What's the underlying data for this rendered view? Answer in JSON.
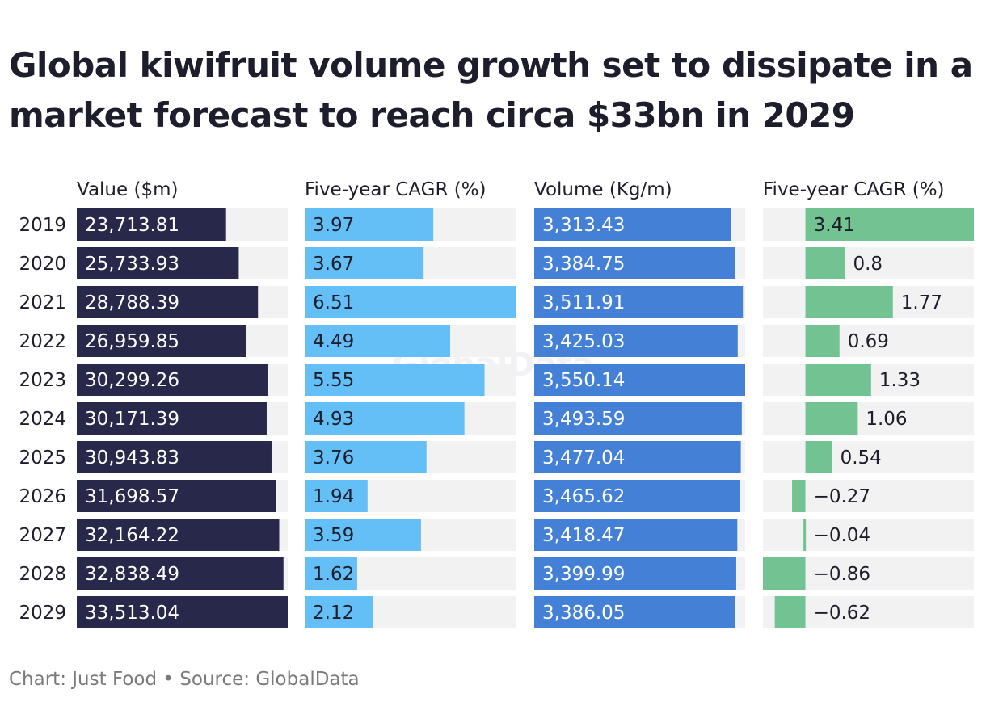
{
  "title": "Global kiwifruit volume growth set to dissipate in a market forecast to reach circa $33bn in 2029",
  "footer": "Chart: Just Food • Source: GlobalData",
  "watermark": "GlobalData",
  "colors": {
    "value": "#28284a",
    "value_cagr": "#64bff7",
    "volume": "#4480d6",
    "volume_cagr": "#72c391",
    "track": "#f2f2f2",
    "label_on_dark": "#ffffff",
    "label_on_light": "#1d1d2b"
  },
  "chart_data": {
    "type": "table",
    "categories": [
      "2019",
      "2020",
      "2021",
      "2022",
      "2023",
      "2024",
      "2025",
      "2026",
      "2027",
      "2028",
      "2029"
    ],
    "series": [
      {
        "name": "Value ($m)",
        "values": [
          23713.81,
          25733.93,
          28788.39,
          26959.85,
          30299.26,
          30171.39,
          30943.83,
          31698.57,
          32164.22,
          32838.49,
          33513.04
        ],
        "labels": [
          "23,713.81",
          "25,733.93",
          "28,788.39",
          "26,959.85",
          "30,299.26",
          "30,171.39",
          "30,943.83",
          "31,698.57",
          "32,164.22",
          "32,838.49",
          "33,513.04"
        ],
        "range": [
          0,
          33513.04
        ]
      },
      {
        "name": "Five-year CAGR (%)",
        "values": [
          3.97,
          3.67,
          6.51,
          4.49,
          5.55,
          4.93,
          3.76,
          1.94,
          3.59,
          1.62,
          2.12
        ],
        "labels": [
          "3.97",
          "3.67",
          "6.51",
          "4.49",
          "5.55",
          "4.93",
          "3.76",
          "1.94",
          "3.59",
          "1.62",
          "2.12"
        ],
        "range": [
          0,
          6.51
        ]
      },
      {
        "name": "Volume (Kg/m)",
        "values": [
          3313.43,
          3384.75,
          3511.91,
          3425.03,
          3550.14,
          3493.59,
          3477.04,
          3465.62,
          3418.47,
          3399.99,
          3386.05
        ],
        "labels": [
          "3,313.43",
          "3,384.75",
          "3,511.91",
          "3,425.03",
          "3,550.14",
          "3,493.59",
          "3,477.04",
          "3,465.62",
          "3,418.47",
          "3,399.99",
          "3,386.05"
        ],
        "range": [
          0,
          3550.14
        ]
      },
      {
        "name": "Five-year CAGR (%)",
        "values": [
          3.41,
          0.8,
          1.77,
          0.69,
          1.33,
          1.06,
          0.54,
          -0.27,
          -0.04,
          -0.86,
          -0.62
        ],
        "labels": [
          "3.41",
          "0.8",
          "1.77",
          "0.69",
          "1.33",
          "1.06",
          "0.54",
          "−0.27",
          "−0.04",
          "−0.86",
          "−0.62"
        ],
        "range": [
          -0.86,
          3.41
        ]
      }
    ]
  }
}
